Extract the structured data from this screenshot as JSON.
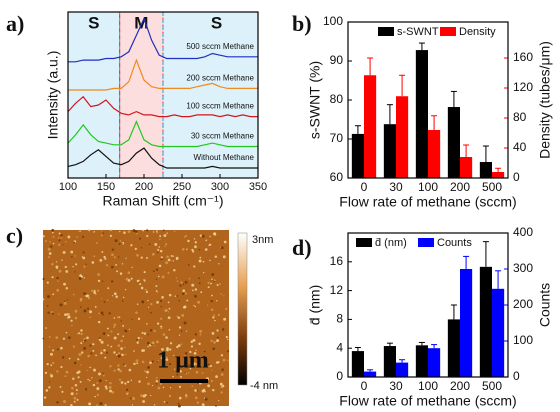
{
  "panel_labels": [
    "a)",
    "b)",
    "c)",
    "d)"
  ],
  "afm": {
    "colorbar_max_label": "3nm",
    "colorbar_min_label": "-4 nm",
    "scale_bar_label": "1 μm"
  },
  "chart_data": [
    {
      "type": "line",
      "xlabel": "Raman Shift (cm⁻¹)",
      "ylabel": "Intensity (a.u.)",
      "xlim": [
        100,
        350
      ],
      "xticks": [
        100,
        150,
        200,
        250,
        300,
        350
      ],
      "ylim": [
        0,
        10
      ],
      "regions": [
        {
          "label": "S",
          "from": 100,
          "to": 168,
          "color": "#1ea0e6"
        },
        {
          "label": "M",
          "from": 168,
          "to": 225,
          "color": "#e8242a"
        },
        {
          "label": "S",
          "from": 225,
          "to": 350,
          "color": "#1ea0e6"
        }
      ],
      "x": [
        100,
        110,
        120,
        130,
        140,
        150,
        160,
        170,
        180,
        190,
        200,
        210,
        220,
        230,
        240,
        250,
        260,
        270,
        280,
        290,
        300,
        310,
        320,
        330,
        340,
        350
      ],
      "series": [
        {
          "name": "500 sccm Methane",
          "color": "#1f2fbf",
          "values": [
            7.0,
            7.0,
            7.1,
            7.1,
            7.1,
            7.2,
            7.2,
            7.3,
            7.6,
            8.6,
            9.6,
            8.3,
            7.4,
            7.2,
            7.2,
            7.2,
            7.2,
            7.2,
            7.3,
            7.5,
            7.4,
            7.3,
            7.3,
            7.3,
            7.3,
            7.3
          ]
        },
        {
          "name": "200 sccm Methane",
          "color": "#f08a1c",
          "values": [
            5.3,
            5.3,
            5.3,
            5.3,
            5.3,
            5.3,
            5.4,
            5.4,
            5.8,
            7.1,
            5.9,
            5.5,
            5.4,
            5.4,
            5.4,
            5.4,
            5.4,
            5.5,
            5.6,
            5.7,
            5.5,
            5.4,
            5.4,
            5.4,
            5.4,
            5.4
          ]
        },
        {
          "name": "100 sccm Methane",
          "color": "#d0181c",
          "values": [
            4.0,
            4.5,
            4.9,
            4.3,
            4.4,
            4.7,
            4.2,
            3.9,
            3.8,
            4.0,
            3.8,
            3.8,
            3.7,
            3.7,
            3.8,
            3.7,
            3.7,
            3.8,
            3.8,
            3.8,
            3.7,
            3.8,
            3.7,
            3.8,
            3.7,
            3.7
          ]
        },
        {
          "name": "30 sccm Methane",
          "color": "#22c81e",
          "values": [
            2.1,
            2.6,
            3.2,
            2.6,
            2.2,
            2.1,
            2.0,
            2.0,
            2.3,
            3.4,
            2.3,
            2.0,
            1.9,
            1.9,
            1.9,
            1.9,
            1.9,
            1.9,
            2.0,
            2.1,
            2.0,
            1.9,
            1.9,
            1.9,
            1.9,
            1.9
          ]
        },
        {
          "name": "Without Methane",
          "color": "#111111",
          "values": [
            0.7,
            0.8,
            1.0,
            1.4,
            1.7,
            1.3,
            0.9,
            0.8,
            1.0,
            1.5,
            1.8,
            1.2,
            0.8,
            0.6,
            0.6,
            0.6,
            0.6,
            0.6,
            0.6,
            0.7,
            0.6,
            0.6,
            0.6,
            0.6,
            0.6,
            0.6
          ]
        }
      ]
    },
    {
      "type": "bar",
      "xlabel": "Flow rate of methane (sccm)",
      "ylabel": "s-SWNT (%)",
      "y2label": "Density (tubes/μm)",
      "categories": [
        "0",
        "30",
        "100",
        "200",
        "500"
      ],
      "ylim": [
        60,
        100
      ],
      "yticks": [
        60,
        70,
        80,
        90,
        100
      ],
      "y2lim": [
        0,
        208
      ],
      "y2ticks": [
        0,
        40,
        80,
        120,
        160
      ],
      "legend": "top-right",
      "series": [
        {
          "name": "s-SWNT",
          "color": "#000000",
          "values": [
            71.3,
            73.8,
            92.8,
            78.2,
            64.1
          ],
          "errors": [
            2.1,
            5,
            1.8,
            4,
            4.1
          ]
        },
        {
          "name": "Density",
          "color": "#ff0000",
          "axis": "y2",
          "values": [
            137,
            109,
            64,
            28,
            8
          ],
          "errors": [
            23,
            28,
            19,
            16,
            5
          ]
        }
      ]
    },
    {
      "type": "bar",
      "xlabel": "Flow rate of methane (sccm)",
      "ylabel": "d̄ (nm)",
      "y2label": "Counts",
      "categories": [
        "0",
        "30",
        "100",
        "200",
        "500"
      ],
      "ylim": [
        0,
        20
      ],
      "yticks": [
        0,
        4,
        8,
        12,
        16
      ],
      "y2lim": [
        0,
        400
      ],
      "y2ticks": [
        0,
        100,
        200,
        300,
        400
      ],
      "legend": "top-left",
      "series": [
        {
          "name": "d̄ (nm)",
          "color": "#000000",
          "values": [
            3.6,
            4.3,
            4.4,
            8.0,
            15.3
          ],
          "errors": [
            0.5,
            0.4,
            0.4,
            2.0,
            3.5
          ]
        },
        {
          "name": "Counts",
          "color": "#0000ff",
          "axis": "y2",
          "values": [
            15,
            40,
            80,
            300,
            245
          ],
          "errors": [
            5,
            8,
            10,
            35,
            50
          ]
        }
      ]
    }
  ]
}
